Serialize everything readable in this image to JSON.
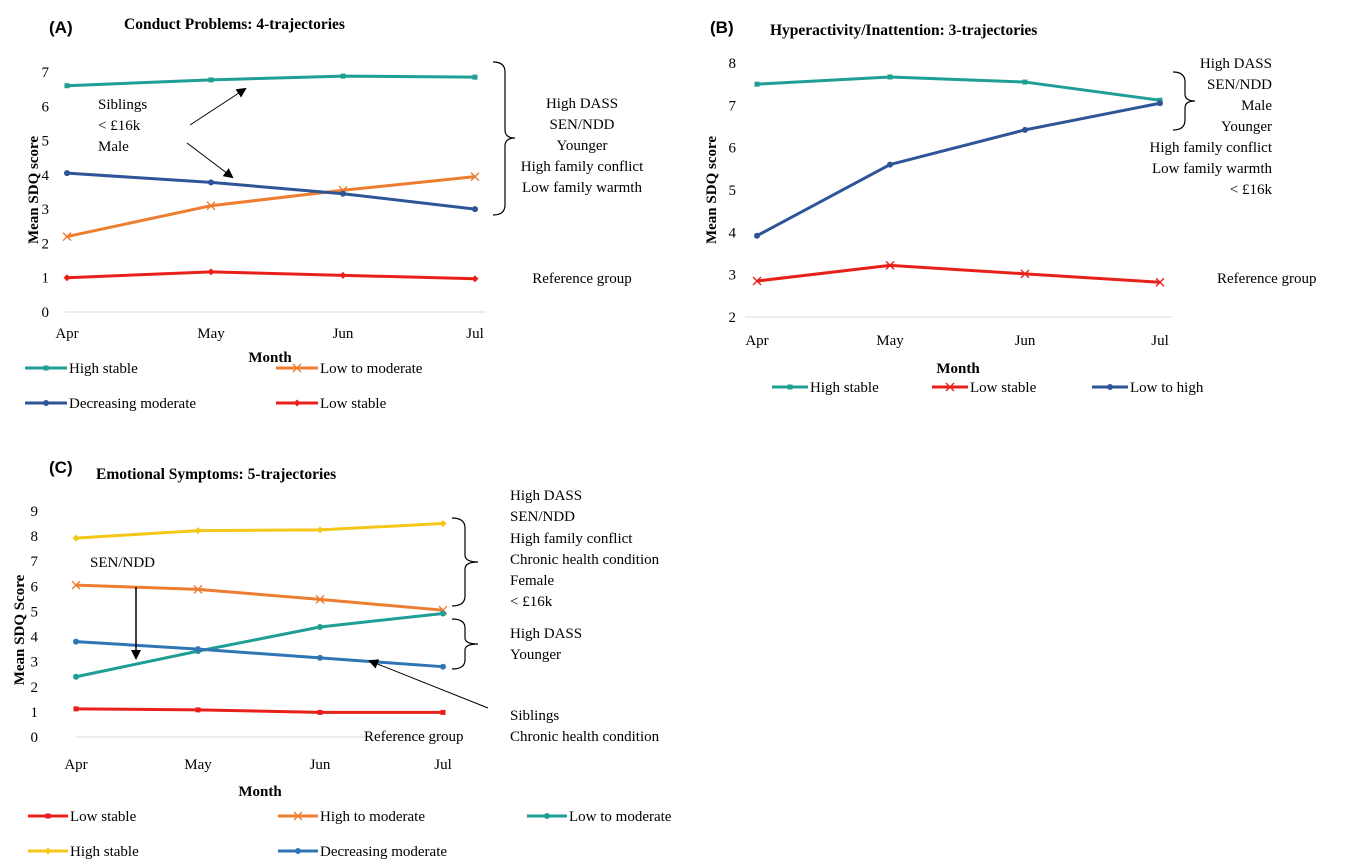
{
  "chart_data": [
    {
      "type": "line",
      "panel_label": "(A)",
      "title": "Conduct Problems: 4-trajectories",
      "xlabel": "Month",
      "ylabel": "Mean SDQ score",
      "categories": [
        "Apr",
        "May",
        "Jun",
        "Jul"
      ],
      "ylim": [
        0,
        7
      ],
      "yticks": [
        "0",
        "1",
        "2",
        "3",
        "4",
        "5",
        "6",
        "7"
      ],
      "series": [
        {
          "name": "High stable",
          "values": [
            6.6,
            6.77,
            6.88,
            6.85
          ],
          "color": "#1f9e96",
          "marker": "square"
        },
        {
          "name": "Low to moderate",
          "values": [
            2.2,
            3.1,
            3.55,
            3.95
          ],
          "color": "#ed7d31",
          "marker": "x"
        },
        {
          "name": "Decreasing moderate",
          "values": [
            4.05,
            3.78,
            3.45,
            3.0
          ],
          "color": "#2e5597",
          "marker": "circle"
        },
        {
          "name": "Low stable",
          "values": [
            1.0,
            1.17,
            1.07,
            0.97
          ],
          "color": "#e8201a",
          "marker": "diamond"
        }
      ],
      "annotations": {
        "left": [
          "Siblings",
          "< £16k",
          "Male"
        ],
        "bracket_upper": [
          "High DASS",
          "SEN/NDD",
          "Younger",
          "High family conflict",
          "Low family warmth"
        ],
        "reference": "Reference group"
      },
      "legend": {
        "position": "bottom",
        "rows": [
          [
            "High stable",
            "Low to moderate"
          ],
          [
            "Decreasing moderate",
            "Low stable"
          ]
        ]
      }
    },
    {
      "type": "line",
      "panel_label": "(B)",
      "title": "Hyperactivity/Inattention: 3-trajectories",
      "xlabel": "Month",
      "ylabel": "Mean SDQ score",
      "categories": [
        "Apr",
        "May",
        "Jun",
        "Jul"
      ],
      "ylim": [
        2,
        8
      ],
      "yticks": [
        "2",
        "3",
        "4",
        "5",
        "6",
        "7",
        "8"
      ],
      "series": [
        {
          "name": "High stable",
          "values": [
            7.5,
            7.67,
            7.55,
            7.12
          ],
          "color": "#1f9e96",
          "marker": "square"
        },
        {
          "name": "Low stable",
          "values": [
            2.85,
            3.22,
            3.02,
            2.82
          ],
          "color": "#e8201a",
          "marker": "x"
        },
        {
          "name": "Low to high",
          "values": [
            3.92,
            5.6,
            6.42,
            7.05
          ],
          "color": "#2e5597",
          "marker": "circle"
        }
      ],
      "annotations": {
        "bracket_upper": [
          "High DASS",
          "SEN/NDD",
          "Male",
          "Younger",
          "High family conflict",
          "Low family warmth",
          "< £16k"
        ],
        "reference": "Reference group"
      },
      "legend": {
        "position": "bottom",
        "rows": [
          [
            "High stable",
            "Low stable",
            "Low to high"
          ]
        ]
      }
    },
    {
      "type": "line",
      "panel_label": "(C)",
      "title": "Emotional Symptoms: 5-trajectories",
      "xlabel": "Month",
      "ylabel": "Mean SDQ Score",
      "categories": [
        "Apr",
        "May",
        "Jun",
        "Jul"
      ],
      "ylim": [
        0,
        9
      ],
      "yticks": [
        "0",
        "1",
        "2",
        "3",
        "4",
        "5",
        "6",
        "7",
        "8",
        "9"
      ],
      "series": [
        {
          "name": "Low stable",
          "values": [
            1.12,
            1.08,
            0.98,
            0.98
          ],
          "color": "#e8201a",
          "marker": "square"
        },
        {
          "name": "High to moderate",
          "values": [
            6.05,
            5.88,
            5.48,
            5.05
          ],
          "color": "#ed7d31",
          "marker": "x"
        },
        {
          "name": "Low to moderate",
          "values": [
            2.4,
            3.42,
            4.38,
            4.92
          ],
          "color": "#1f9e96",
          "marker": "circle"
        },
        {
          "name": "High stable",
          "values": [
            7.92,
            8.22,
            8.25,
            8.5
          ],
          "color": "#f5c518",
          "marker": "diamond"
        },
        {
          "name": "Decreasing moderate",
          "values": [
            3.8,
            3.5,
            3.15,
            2.8
          ],
          "color": "#2f75b6",
          "marker": "circle"
        }
      ],
      "annotations": {
        "left": [
          "SEN/NDD"
        ],
        "bracket_upper": [
          "High DASS",
          "SEN/NDD",
          "High family conflict",
          "Chronic health condition",
          "Female",
          "< £16k"
        ],
        "bracket_middle": [
          "High DASS",
          "Younger"
        ],
        "arrow_note": [
          "Siblings",
          "Chronic health condition"
        ],
        "reference": "Reference group"
      },
      "legend": {
        "position": "bottom",
        "rows": [
          [
            "Low stable",
            "High to moderate",
            "Low to moderate"
          ],
          [
            "High stable",
            "Decreasing moderate"
          ]
        ]
      }
    }
  ]
}
